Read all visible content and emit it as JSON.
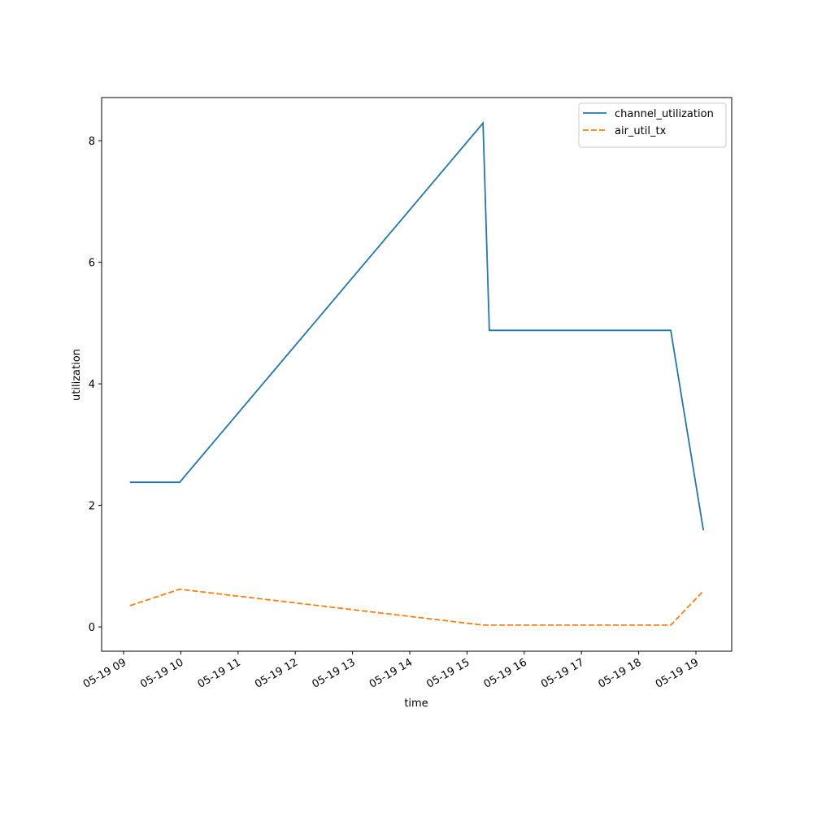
{
  "chart_data": {
    "type": "line",
    "xlabel": "time",
    "ylabel": "utilization",
    "x": [
      9.11,
      9.98,
      15.28,
      15.39,
      18.56,
      19.13
    ],
    "series": [
      {
        "name": "channel_utilization",
        "color": "#1f77b4",
        "dash": "solid",
        "values": [
          2.38,
          2.38,
          8.29,
          4.88,
          4.88,
          1.59
        ]
      },
      {
        "name": "air_util_tx",
        "color": "#ff7f0e",
        "dash": "dashed",
        "values": [
          0.35,
          0.62,
          0.03,
          0.03,
          0.03,
          0.59
        ]
      }
    ],
    "xlim": [
      8.616,
      19.625
    ],
    "ylim": [
      -0.4,
      8.71
    ],
    "xticks": [
      {
        "value": 9,
        "label": "05-19 09"
      },
      {
        "value": 10,
        "label": "05-19 10"
      },
      {
        "value": 11,
        "label": "05-19 11"
      },
      {
        "value": 12,
        "label": "05-19 12"
      },
      {
        "value": 13,
        "label": "05-19 13"
      },
      {
        "value": 14,
        "label": "05-19 14"
      },
      {
        "value": 15,
        "label": "05-19 15"
      },
      {
        "value": 16,
        "label": "05-19 16"
      },
      {
        "value": 17,
        "label": "05-19 17"
      },
      {
        "value": 18,
        "label": "05-19 18"
      },
      {
        "value": 19,
        "label": "05-19 19"
      }
    ],
    "yticks": [
      0,
      2,
      4,
      6,
      8
    ],
    "legend": "upper right"
  }
}
